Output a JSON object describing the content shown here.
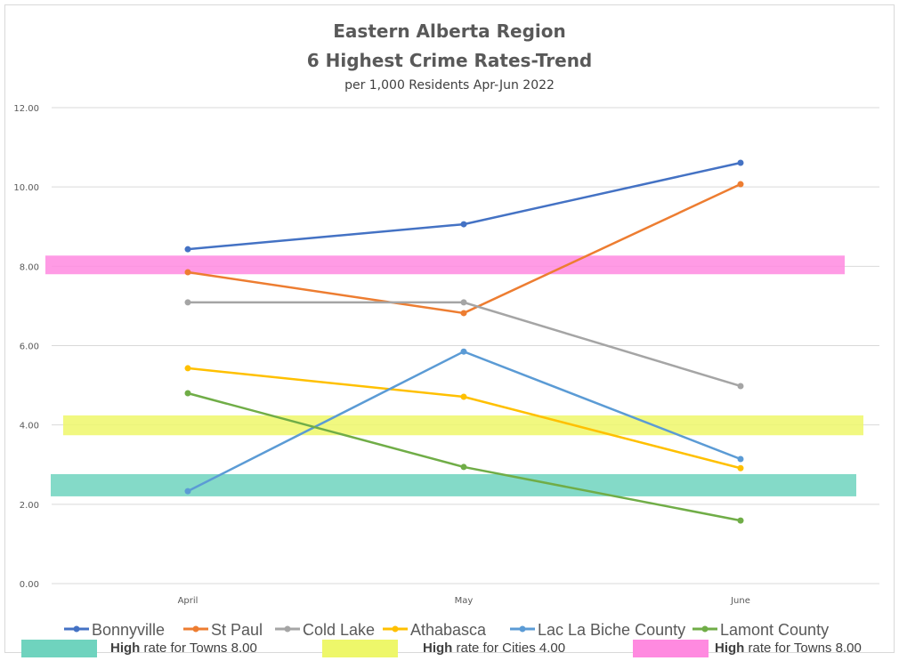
{
  "chart_data": {
    "type": "line",
    "title": "Eastern Alberta Region",
    "title2": "6 Highest Crime Rates-Trend",
    "subtitle": "per 1,000 Residents Apr-Jun 2022",
    "categories": [
      "April",
      "May",
      "June"
    ],
    "ylim": [
      0,
      12
    ],
    "yticks": [
      "0.00",
      "2.00",
      "4.00",
      "6.00",
      "8.00",
      "10.00",
      "12.00"
    ],
    "grid": true,
    "legend_position": "bottom",
    "series": [
      {
        "name": "Bonnyville",
        "color": "#4472C4",
        "values": [
          8.43,
          9.06,
          10.61
        ]
      },
      {
        "name": "St Paul",
        "color": "#ED7D31",
        "values": [
          7.85,
          6.82,
          10.07
        ]
      },
      {
        "name": "Cold Lake",
        "color": "#A5A5A5",
        "values": [
          7.09,
          7.09,
          4.98
        ]
      },
      {
        "name": "Athabasca",
        "color": "#FFC000",
        "values": [
          5.43,
          4.71,
          2.91
        ]
      },
      {
        "name": "Lac La Biche County",
        "color": "#5B9BD5",
        "values": [
          2.33,
          5.85,
          3.14
        ]
      },
      {
        "name": "Lamont County",
        "color": "#70AD47",
        "values": [
          4.8,
          2.94,
          1.59
        ]
      }
    ],
    "bands": [
      {
        "bold": "High",
        "label": " rate for Towns 8.00",
        "color": "#6FD3BE",
        "range": [
          2.2,
          2.76
        ]
      },
      {
        "bold": "High",
        "label": " rate for Cities 4.00",
        "color": "#EEF76A",
        "range": [
          3.74,
          4.24
        ]
      },
      {
        "bold": "High",
        "label": " rate for Towns 8.00",
        "color": "#FF8AE0",
        "range": [
          7.8,
          8.27
        ]
      }
    ]
  }
}
